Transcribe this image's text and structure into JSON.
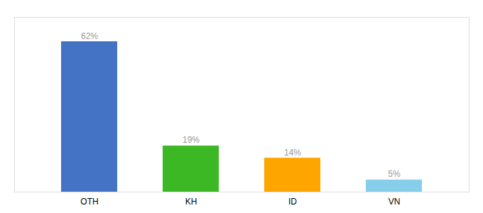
{
  "chart_data": {
    "type": "bar",
    "categories": [
      "OTH",
      "KH",
      "ID",
      "VN"
    ],
    "values": [
      62,
      19,
      14,
      5
    ],
    "value_labels": [
      "62%",
      "19%",
      "14%",
      "5%"
    ],
    "data_labels": true,
    "colors": [
      "#4472C4",
      "#3CB824",
      "#FFA500",
      "#87CEEB"
    ],
    "ylim": [
      0,
      72
    ],
    "tick_labels": "x",
    "grid": false
  }
}
